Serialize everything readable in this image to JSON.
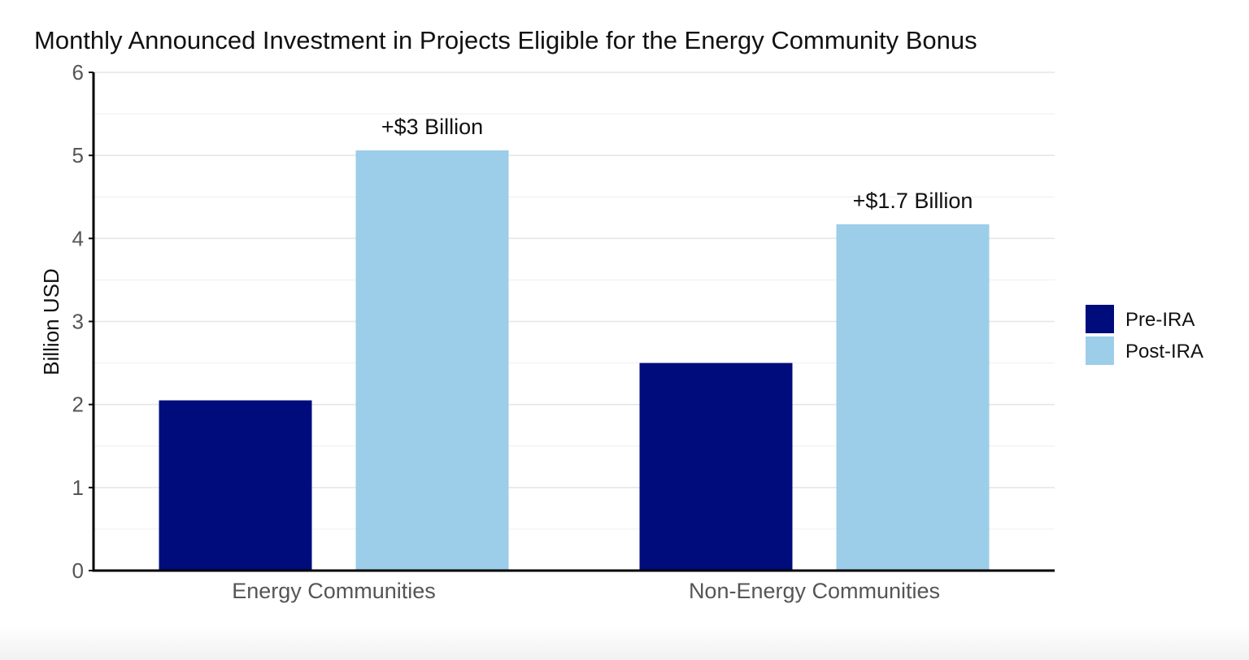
{
  "chart_data": {
    "type": "bar",
    "title": "Monthly Announced Investment in Projects Eligible for the Energy Community Bonus",
    "xlabel": "",
    "ylabel": "Billion USD",
    "ylim": [
      0,
      6
    ],
    "yticks": [
      0,
      1,
      2,
      3,
      4,
      5,
      6
    ],
    "categories": [
      "Energy Communities",
      "Non-Energy Communities"
    ],
    "series": [
      {
        "name": "Pre-IRA",
        "values": [
          2.05,
          2.5
        ],
        "color": "#000c7b"
      },
      {
        "name": "Post-IRA",
        "values": [
          5.06,
          4.17
        ],
        "color": "#9ccde9"
      }
    ],
    "annotations": [
      "+$3 Billion",
      "+$1.7 Billion"
    ],
    "grid": true,
    "legend_position": "right"
  }
}
